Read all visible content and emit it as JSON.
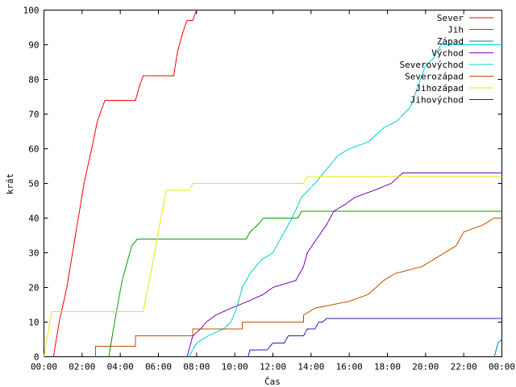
{
  "chart_data": {
    "type": "line",
    "title": "",
    "xlabel": "Čas",
    "ylabel": "krát",
    "xlim": [
      0,
      24
    ],
    "ylim": [
      0,
      100
    ],
    "x_unit": "hours",
    "x_ticks": [
      "00:00",
      "02:00",
      "04:00",
      "06:00",
      "08:00",
      "10:00",
      "12:00",
      "14:00",
      "16:00",
      "18:00",
      "20:00",
      "22:00",
      "00:00"
    ],
    "y_ticks": [
      "0",
      "10",
      "20",
      "30",
      "40",
      "50",
      "60",
      "70",
      "80",
      "90",
      "100"
    ],
    "grid": false,
    "legend_position": "top-right",
    "series": [
      {
        "name": "Sever",
        "color": "#ff0000",
        "points": [
          [
            0.5,
            0
          ],
          [
            0.8,
            10
          ],
          [
            1.2,
            20
          ],
          [
            1.5,
            30
          ],
          [
            1.8,
            40
          ],
          [
            2.1,
            50
          ],
          [
            2.5,
            60
          ],
          [
            2.8,
            68
          ],
          [
            3.2,
            74
          ],
          [
            4.8,
            74
          ],
          [
            5.0,
            78
          ],
          [
            5.2,
            81
          ],
          [
            6.8,
            81
          ],
          [
            7.0,
            88
          ],
          [
            7.3,
            94
          ],
          [
            7.5,
            97
          ],
          [
            7.8,
            97
          ],
          [
            8.0,
            100
          ]
        ]
      },
      {
        "name": "Jih",
        "color": "#00a000",
        "points": [
          [
            3.4,
            0
          ],
          [
            3.7,
            10
          ],
          [
            4.1,
            22
          ],
          [
            4.6,
            32
          ],
          [
            4.9,
            34
          ],
          [
            10.6,
            34
          ],
          [
            10.8,
            36
          ],
          [
            11.2,
            38
          ],
          [
            11.5,
            40
          ],
          [
            13.3,
            40
          ],
          [
            13.5,
            42
          ],
          [
            24,
            42
          ]
        ]
      },
      {
        "name": "Západ",
        "color": "#0080c0",
        "points": [
          [
            23.6,
            0
          ],
          [
            23.8,
            4
          ],
          [
            24,
            5
          ]
        ]
      },
      {
        "name": "Východ",
        "color": "#8000c0",
        "points": [
          [
            7.5,
            0
          ],
          [
            7.8,
            6
          ],
          [
            8.2,
            8
          ],
          [
            8.5,
            10
          ],
          [
            9.0,
            12
          ],
          [
            9.8,
            14
          ],
          [
            10.7,
            16
          ],
          [
            11.5,
            18
          ],
          [
            12.0,
            20
          ],
          [
            13.2,
            22
          ],
          [
            13.6,
            26
          ],
          [
            13.8,
            30
          ],
          [
            14.3,
            34
          ],
          [
            14.8,
            38
          ],
          [
            15.2,
            42
          ],
          [
            15.8,
            44
          ],
          [
            16.3,
            46
          ],
          [
            17.3,
            48
          ],
          [
            18.2,
            50
          ],
          [
            18.8,
            53
          ],
          [
            24,
            53
          ]
        ]
      },
      {
        "name": "Severovýchod",
        "color": "#00d0d0",
        "points": [
          [
            7.6,
            0
          ],
          [
            8.0,
            4
          ],
          [
            8.6,
            6
          ],
          [
            9.4,
            8
          ],
          [
            9.8,
            10
          ],
          [
            10.1,
            14
          ],
          [
            10.4,
            20
          ],
          [
            10.8,
            24
          ],
          [
            11.4,
            28
          ],
          [
            12.0,
            30
          ],
          [
            12.6,
            36
          ],
          [
            13.0,
            40
          ],
          [
            13.5,
            46
          ],
          [
            14.2,
            50
          ],
          [
            14.8,
            54
          ],
          [
            15.4,
            58
          ],
          [
            16.0,
            60
          ],
          [
            17.0,
            62
          ],
          [
            17.8,
            66
          ],
          [
            18.5,
            68
          ],
          [
            19.2,
            72
          ],
          [
            19.6,
            78
          ],
          [
            20.0,
            84
          ],
          [
            20.4,
            86
          ],
          [
            20.8,
            90
          ],
          [
            24,
            90
          ]
        ]
      },
      {
        "name": "Severozápad",
        "color": "#c05000",
        "points": [
          [
            2.7,
            0
          ],
          [
            2.7,
            3
          ],
          [
            4.8,
            3
          ],
          [
            4.8,
            6
          ],
          [
            7.8,
            6
          ],
          [
            7.8,
            8
          ],
          [
            10.4,
            8
          ],
          [
            10.4,
            10
          ],
          [
            13.6,
            10
          ],
          [
            13.6,
            12
          ],
          [
            14.2,
            14
          ],
          [
            16.0,
            16
          ],
          [
            17.0,
            18
          ],
          [
            17.8,
            22
          ],
          [
            18.4,
            24
          ],
          [
            19.8,
            26
          ],
          [
            20.4,
            28
          ],
          [
            21.0,
            30
          ],
          [
            21.6,
            32
          ],
          [
            22.0,
            36
          ],
          [
            23.0,
            38
          ],
          [
            23.6,
            40
          ],
          [
            24,
            40
          ]
        ]
      },
      {
        "name": "Jihozápad",
        "color": "#e8e800",
        "points": [
          [
            0,
            0
          ],
          [
            0.4,
            13
          ],
          [
            5.2,
            13
          ],
          [
            5.6,
            24
          ],
          [
            6.0,
            36
          ],
          [
            6.4,
            48
          ],
          [
            7.6,
            48
          ],
          [
            7.8,
            50
          ],
          [
            13.6,
            50
          ],
          [
            13.8,
            52
          ],
          [
            24,
            52
          ]
        ]
      },
      {
        "name": "Jihovýchod",
        "color": "#2020c0",
        "points": [
          [
            10.7,
            0
          ],
          [
            10.8,
            2
          ],
          [
            11.7,
            2
          ],
          [
            12.0,
            4
          ],
          [
            12.6,
            4
          ],
          [
            12.8,
            6
          ],
          [
            13.6,
            6
          ],
          [
            13.8,
            8
          ],
          [
            14.2,
            8
          ],
          [
            14.4,
            10
          ],
          [
            14.6,
            10
          ],
          [
            14.8,
            11
          ],
          [
            24,
            11
          ]
        ]
      }
    ]
  }
}
